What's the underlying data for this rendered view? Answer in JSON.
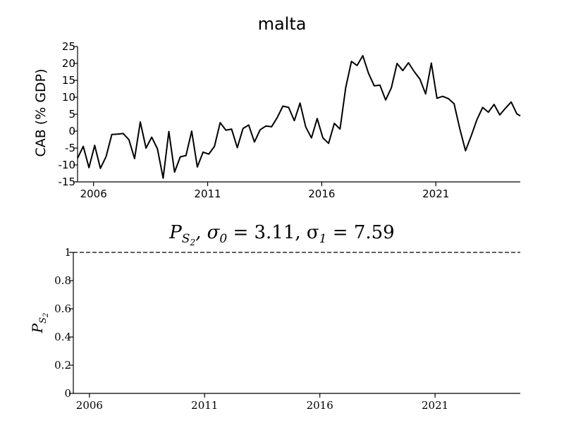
{
  "chart_data": [
    {
      "type": "line",
      "title": "malta",
      "xlabel": "",
      "ylabel": "CAB (% GDP)",
      "xlim": [
        2005.3,
        2024.7
      ],
      "ylim": [
        -15,
        25
      ],
      "yticks": [
        25,
        20,
        15,
        10,
        5,
        0,
        -5,
        -10,
        -15
      ],
      "xticks": [
        2006,
        2011,
        2016,
        2021
      ],
      "grid": false,
      "x": [
        2005.3,
        2005.55,
        2005.8,
        2006.05,
        2006.3,
        2006.55,
        2006.8,
        2007.05,
        2007.3,
        2007.55,
        2007.8,
        2008.05,
        2008.3,
        2008.55,
        2008.8,
        2009.05,
        2009.3,
        2009.55,
        2009.8,
        2010.05,
        2010.3,
        2010.55,
        2010.8,
        2011.05,
        2011.3,
        2011.55,
        2011.8,
        2012.05,
        2012.3,
        2012.55,
        2012.8,
        2013.05,
        2013.3,
        2013.55,
        2013.8,
        2014.05,
        2014.3,
        2014.55,
        2014.8,
        2015.05,
        2015.3,
        2015.55,
        2015.8,
        2016.05,
        2016.3,
        2016.55,
        2016.8,
        2017.05,
        2017.3,
        2017.55,
        2017.8,
        2018.05,
        2018.3,
        2018.55,
        2018.8,
        2019.05,
        2019.3,
        2019.55,
        2019.8,
        2020.05,
        2020.3,
        2020.55,
        2020.8,
        2021.05,
        2021.3,
        2021.55,
        2021.8,
        2022.05,
        2022.3,
        2022.55,
        2022.8,
        2023.05,
        2023.3,
        2023.55,
        2023.8,
        2024.05,
        2024.3,
        2024.55,
        2024.7
      ],
      "series": [
        {
          "values": [
            -8,
            -4.5,
            -10.8,
            -4.2,
            -11,
            -7.5,
            -1,
            -0.9,
            -0.7,
            -2.5,
            -8.1,
            2.7,
            -5,
            -1.8,
            -5.2,
            -13.9,
            -0.1,
            -12.1,
            -7.6,
            -7.2,
            0,
            -10.6,
            -6.2,
            -6.8,
            -4.5,
            2.5,
            0.3,
            0.6,
            -4.9,
            0.8,
            1.8,
            -3.2,
            0.4,
            1.5,
            1.3,
            4,
            7.4,
            7,
            3.1,
            8.3,
            1.2,
            -2,
            3.7,
            -2,
            -3.6,
            2.3,
            0.6,
            12.9,
            20.6,
            19.4,
            22.3,
            17.1,
            13.4,
            13.6,
            9.2,
            12.8,
            20,
            17.9,
            20.2,
            17.6,
            15.4,
            11,
            20.1,
            9.7,
            10.3,
            9.6,
            8.1,
            0.7,
            -5.8,
            -1.4,
            3.4,
            7,
            5.6,
            7.9,
            4.8,
            6.8,
            8.6,
            5.1,
            4.5
          ]
        }
      ]
    },
    {
      "type": "line",
      "title": "P_{S_2}, σ_0 = 3.11, σ_1 = 7.59",
      "title_parts": {
        "p": "P",
        "s": "S",
        "sub2": "2",
        "rest": ", σ",
        "sub0": "0",
        "eq0": " = 3.11, σ",
        "sub1": "1",
        "eq1": " = 7.59"
      },
      "xlabel": "",
      "ylabel": "P_{S_2}",
      "ylabel_parts": {
        "p": "P",
        "s": "S",
        "sub2": "2"
      },
      "xlim": [
        2005.3,
        2024.7
      ],
      "ylim": [
        0,
        1
      ],
      "yticks": [
        "1",
        "0.8",
        "0.6",
        "0.4",
        "0.2",
        "0"
      ],
      "xticks": [
        2006,
        2011,
        2016,
        2021
      ],
      "grid": false,
      "series": [],
      "reference_lines": [
        {
          "y": 1,
          "style": "dashed"
        }
      ]
    }
  ]
}
